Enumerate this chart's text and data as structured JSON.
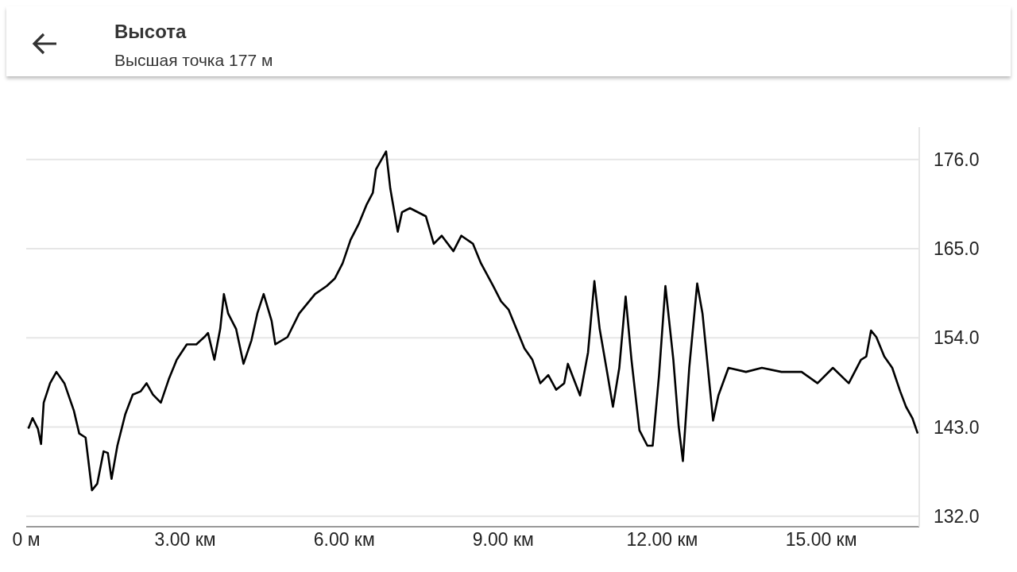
{
  "chart_data": {
    "type": "line",
    "title": "Высота",
    "subtitle": "Высшая точка 177 м",
    "xlim": [
      0,
      16.85
    ],
    "xticks": [
      {
        "value": 0,
        "label": "0 м"
      },
      {
        "value": 3,
        "label": "3.00 км"
      },
      {
        "value": 6,
        "label": "6.00 км"
      },
      {
        "value": 9,
        "label": "9.00 км"
      },
      {
        "value": 12,
        "label": "12.00 км"
      },
      {
        "value": 15,
        "label": "15.00 км"
      }
    ],
    "ylim": [
      130.7,
      180
    ],
    "yticks": [
      {
        "value": 132,
        "label": "132.0"
      },
      {
        "value": 143,
        "label": "143.0"
      },
      {
        "value": 154,
        "label": "154.0"
      },
      {
        "value": 165,
        "label": "165.0"
      },
      {
        "value": 176,
        "label": "176.0"
      }
    ],
    "grid": "y",
    "marker": "none",
    "line_style": "solid",
    "series": [
      {
        "color": "#000000",
        "x": [
          0.04,
          0.12,
          0.22,
          0.28,
          0.33,
          0.45,
          0.57,
          0.72,
          0.9,
          1.0,
          1.12,
          1.24,
          1.34,
          1.46,
          1.54,
          1.61,
          1.72,
          1.87,
          2.01,
          2.16,
          2.27,
          2.39,
          2.54,
          2.69,
          2.84,
          3.03,
          3.21,
          3.36,
          3.43,
          3.55,
          3.66,
          3.73,
          3.81,
          3.96,
          4.1,
          4.25,
          4.36,
          4.48,
          4.63,
          4.7,
          4.93,
          5.15,
          5.45,
          5.67,
          5.82,
          5.97,
          6.12,
          6.27,
          6.42,
          6.54,
          6.6,
          6.72,
          6.79,
          6.87,
          7.01,
          7.09,
          7.24,
          7.54,
          7.69,
          7.84,
          8.06,
          8.21,
          8.43,
          8.58,
          8.81,
          8.96,
          9.1,
          9.25,
          9.4,
          9.55,
          9.7,
          9.85,
          10.0,
          10.15,
          10.22,
          10.45,
          10.6,
          10.72,
          10.82,
          10.97,
          11.07,
          11.19,
          11.31,
          11.42,
          11.57,
          11.72,
          11.82,
          11.94,
          12.06,
          12.21,
          12.31,
          12.39,
          12.51,
          12.66,
          12.76,
          12.96,
          13.06,
          13.25,
          13.58,
          13.88,
          14.25,
          14.63,
          14.93,
          15.22,
          15.52,
          15.75,
          15.85,
          15.94,
          16.04,
          16.19,
          16.34,
          16.49,
          16.6,
          16.72,
          16.82
        ],
        "values": [
          142.8,
          144.1,
          142.8,
          140.9,
          146.0,
          148.4,
          149.8,
          148.4,
          145.0,
          142.2,
          141.7,
          135.2,
          136.0,
          140.0,
          139.8,
          136.6,
          140.7,
          144.6,
          147.0,
          147.4,
          148.4,
          147.0,
          146.0,
          148.9,
          151.3,
          153.2,
          153.2,
          154.1,
          154.6,
          151.3,
          155.1,
          159.4,
          157.0,
          155.1,
          150.8,
          153.7,
          157.0,
          159.4,
          156.1,
          153.2,
          154.1,
          157.0,
          159.4,
          160.4,
          161.3,
          163.2,
          166.1,
          168.0,
          170.4,
          171.9,
          174.8,
          176.2,
          177.0,
          172.4,
          167.1,
          169.5,
          170.0,
          169.0,
          165.6,
          166.6,
          164.7,
          166.6,
          165.6,
          163.2,
          160.4,
          158.5,
          157.5,
          155.1,
          152.7,
          151.3,
          148.4,
          149.4,
          147.6,
          148.4,
          150.8,
          146.9,
          152.2,
          161.0,
          155.1,
          149.4,
          145.5,
          150.3,
          159.1,
          151.3,
          142.6,
          140.7,
          140.7,
          149.4,
          160.4,
          151.3,
          143.1,
          138.8,
          150.3,
          160.7,
          157.0,
          143.8,
          146.9,
          150.3,
          149.8,
          150.3,
          149.8,
          149.8,
          148.4,
          150.3,
          148.4,
          151.3,
          151.7,
          154.9,
          154.1,
          151.7,
          150.3,
          147.4,
          145.5,
          144.1,
          142.2
        ]
      }
    ]
  }
}
